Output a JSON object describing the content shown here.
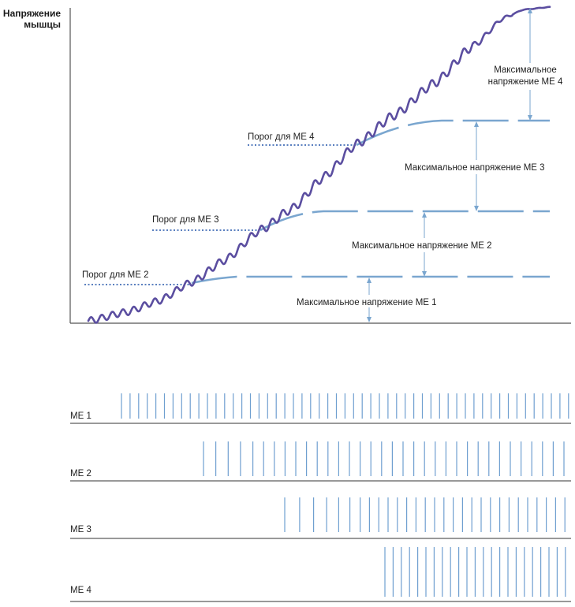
{
  "y_axis_label": [
    "Напряжение",
    "мышцы"
  ],
  "threshold_labels": {
    "me2": "Порог для МЕ 2",
    "me3": "Порог для МЕ 3",
    "me4": "Порог для МЕ 4"
  },
  "max_tension_labels": {
    "me1": "Максимальное напряжение МЕ 1",
    "me2": "Максимальное напряжение МЕ 2",
    "me3": "Максимальное напряжение МЕ 3",
    "me4": [
      "Максимальное",
      "напряжение МЕ 4"
    ]
  },
  "motor_units": [
    {
      "label": "МЕ 1",
      "spike_count": 53
    },
    {
      "label": "МЕ 2",
      "spike_count": 34
    },
    {
      "label": "МЕ 3",
      "spike_count": 31
    },
    {
      "label": "МЕ 4",
      "spike_count": 23
    }
  ],
  "colors": {
    "tension_curve": "#5b4ea0",
    "unit_levels": "#7aa6cf",
    "threshold": "#5a7fbf",
    "spikes": "#6f9fd0"
  }
}
